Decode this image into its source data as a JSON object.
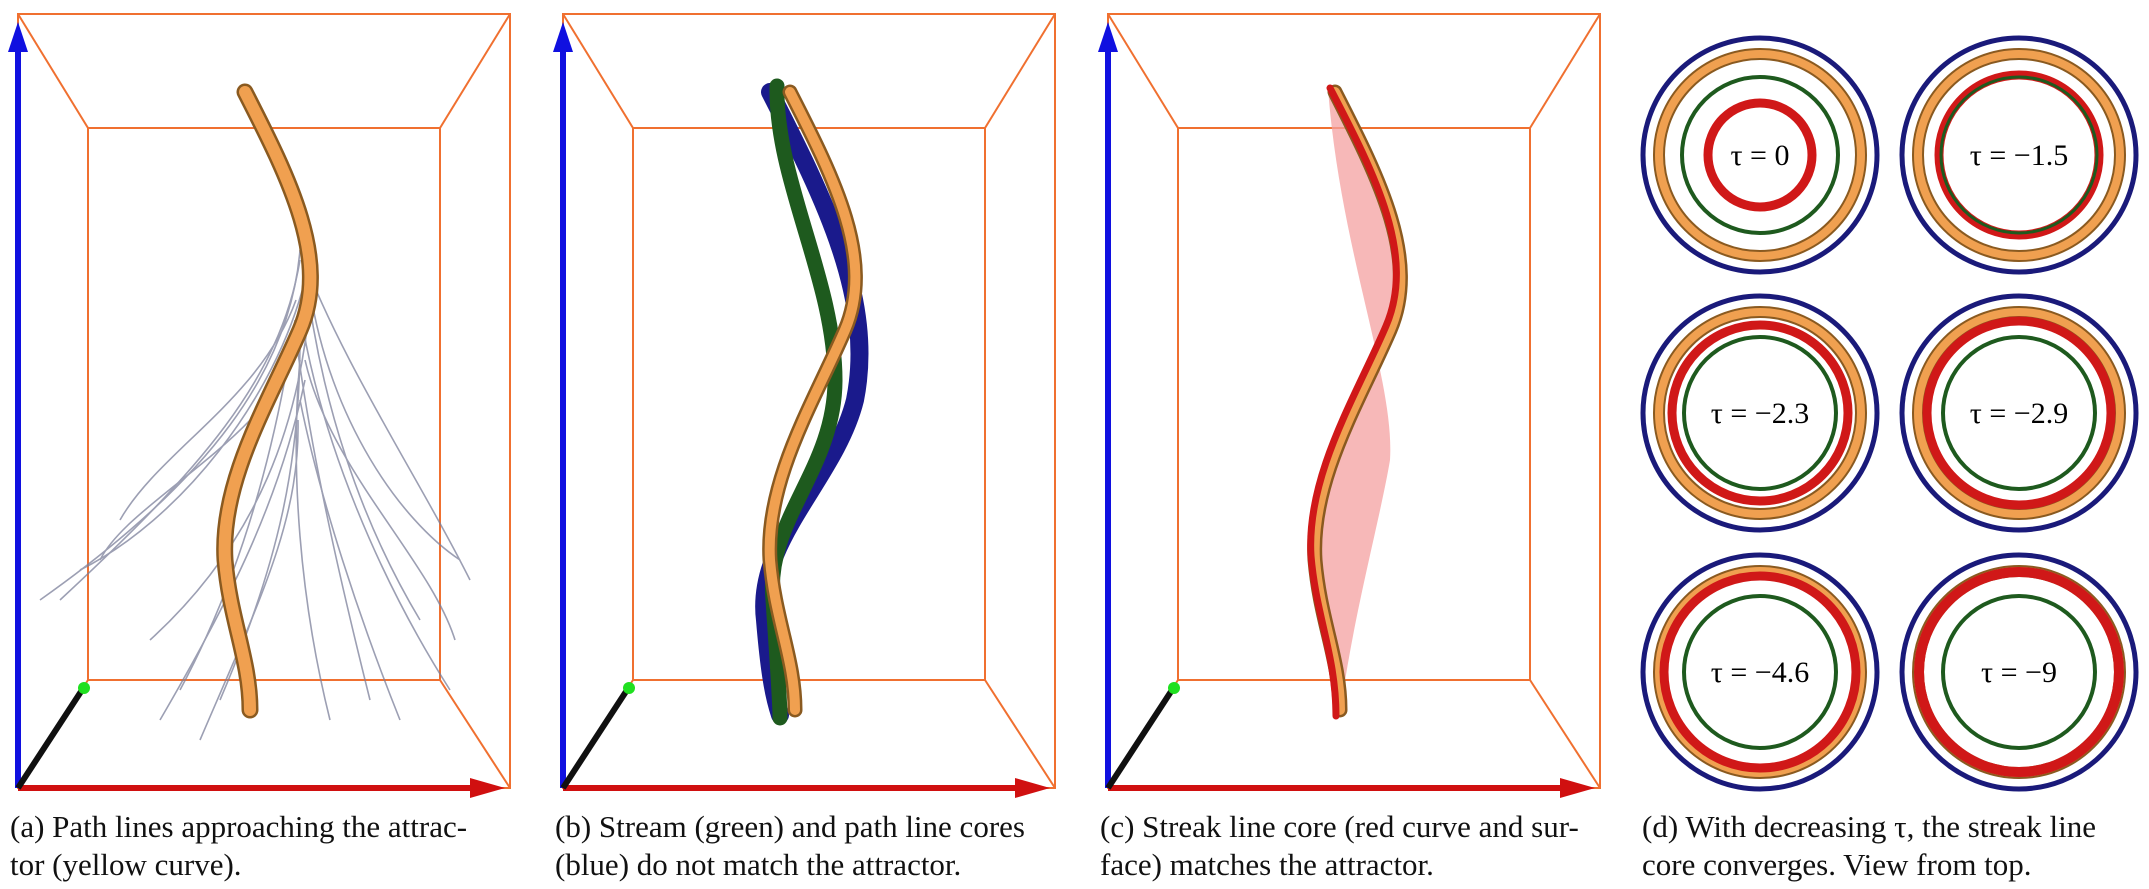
{
  "figure": {
    "panels": [
      {
        "id": "a",
        "caption_lines": [
          "(a) Path lines approaching the attrac-",
          "tor (yellow curve)."
        ]
      },
      {
        "id": "b",
        "caption_lines": [
          "(b) Stream (green) and path line cores",
          "(blue) do not match the attractor."
        ]
      },
      {
        "id": "c",
        "caption_lines": [
          "(c) Streak line core (red curve and sur-",
          "face) matches the attractor."
        ]
      },
      {
        "id": "d",
        "caption_lines": [
          "(d) With decreasing τ, the streak line",
          "core converges. View from top."
        ],
        "tau_values": [
          "τ = 0",
          "τ = −1.5",
          "τ = −2.3",
          "τ = −2.9",
          "τ = −4.6",
          "τ = −9"
        ]
      }
    ],
    "colors": {
      "box": "#f07030",
      "axis_x": "#d01010",
      "axis_y": "#1010e0",
      "axis_z": "#101010",
      "attractor": "#f0a050",
      "stream_core": "#1e5a1e",
      "path_core": "#1a1a8c",
      "streak_core": "#d01818",
      "outer_ring": "#1a1a7a",
      "origin_marker": "#20e020"
    }
  }
}
